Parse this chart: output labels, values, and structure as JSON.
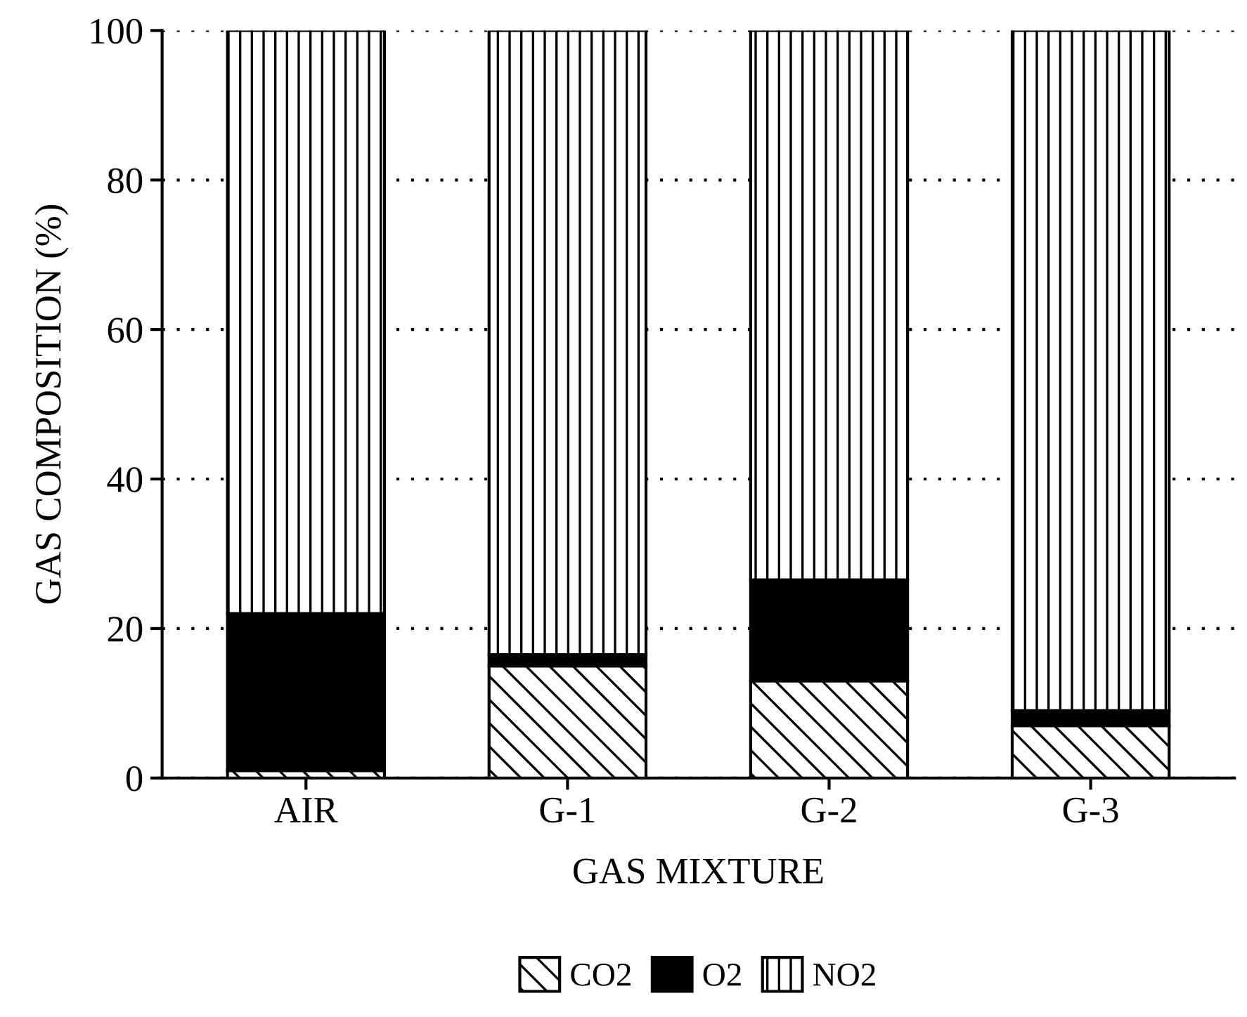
{
  "chart_data": {
    "type": "bar",
    "stacked": true,
    "xlabel": "GAS MIXTURE",
    "ylabel": "GAS COMPOSITION (%)",
    "categories": [
      "AIR",
      "G-1",
      "G-2",
      "G-3"
    ],
    "series": [
      {
        "name": "CO2",
        "color": "#000000",
        "values": [
          1,
          15,
          13,
          7
        ]
      },
      {
        "name": "O2",
        "color": "#000000",
        "values": [
          21,
          1.5,
          13.5,
          2
        ]
      },
      {
        "name": "NO2",
        "color": "#000000",
        "values": [
          78,
          83.5,
          73.5,
          91
        ]
      }
    ],
    "ylim": [
      0,
      100
    ],
    "yticks": [
      0,
      20,
      40,
      60,
      80,
      100
    ],
    "grid": "y",
    "legend": "bottom"
  }
}
